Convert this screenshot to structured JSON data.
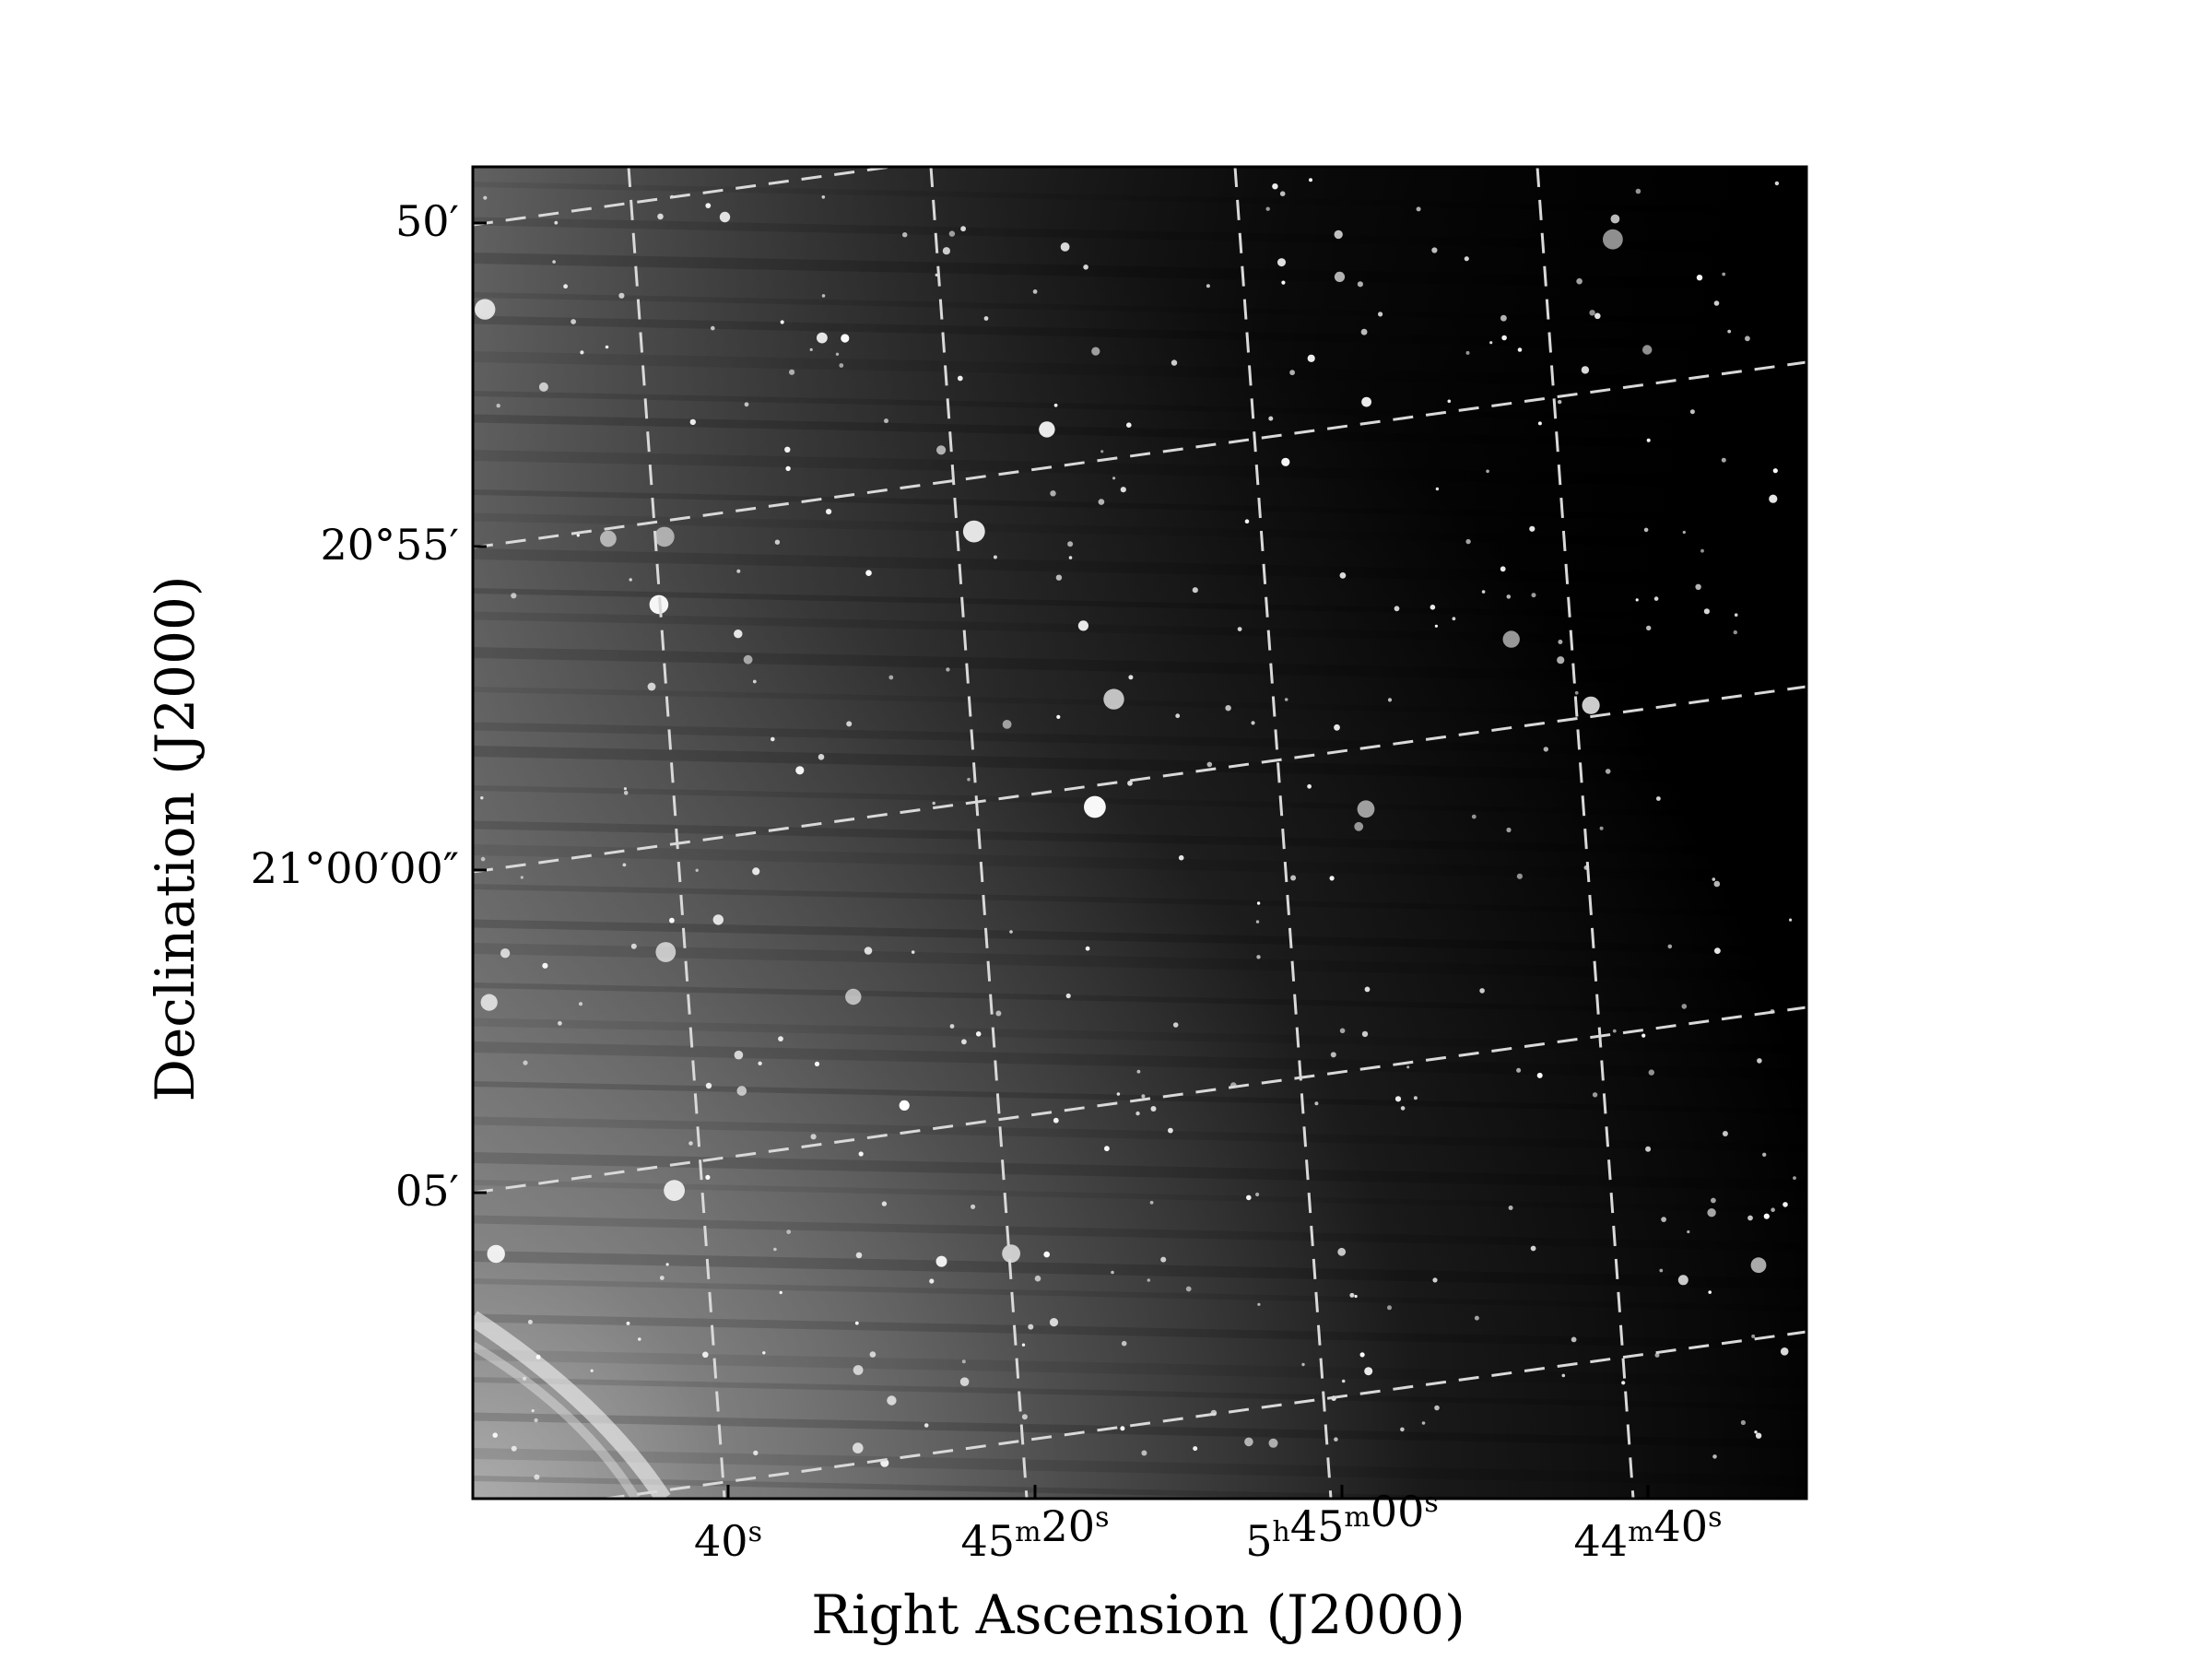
{
  "figure": {
    "xlabel": "Right Ascension (J2000)",
    "ylabel": "Declination (J2000)",
    "x_ticks": [
      {
        "main": "40",
        "sup": "s",
        "rest": []
      },
      {
        "main": "45",
        "sup": "m",
        "rest": [
          {
            "main": "20",
            "sup": "s"
          }
        ]
      },
      {
        "main": "5",
        "sup": "h",
        "rest": [
          {
            "main": "45",
            "sup": "m"
          },
          {
            "main": "00",
            "sup": "s"
          }
        ]
      },
      {
        "main": "44",
        "sup": "m",
        "rest": [
          {
            "main": "40",
            "sup": "s"
          }
        ]
      }
    ],
    "y_ticks": [
      "50′",
      "20°55′",
      "21°00′00″",
      "05′"
    ],
    "colormap": "grayscale",
    "grid": "dashed light gray coordinate grid",
    "frame_color": "#000000",
    "grid_color": "#d9d9d9"
  }
}
